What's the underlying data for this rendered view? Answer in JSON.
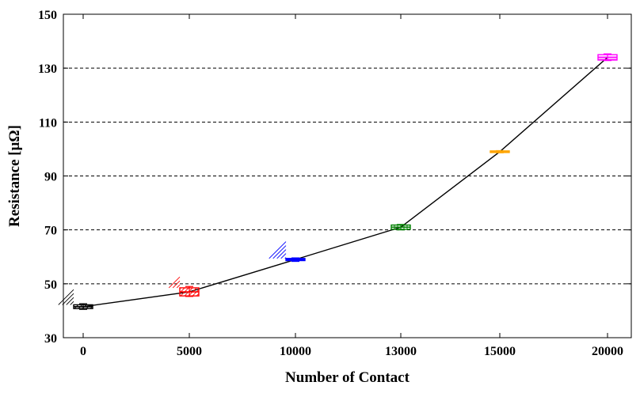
{
  "chart_data": {
    "type": "box",
    "xlabel": "Number of Contact",
    "ylabel": "Resistance [μΩ]",
    "categories": [
      "0",
      "5000",
      "10000",
      "13000",
      "15000",
      "20000"
    ],
    "ylim": [
      30,
      150
    ],
    "yticks": [
      30,
      50,
      70,
      90,
      110,
      130,
      150
    ],
    "grid": "horizontal-dashed",
    "series": [
      {
        "values": [
          41.5,
          47.0,
          59.0,
          71.0,
          99.0,
          134.0
        ],
        "boxes": [
          {
            "category": "0",
            "low": 40.5,
            "q1": 40.8,
            "median": 41.5,
            "q3": 42.2,
            "high": 42.6,
            "color": "#000000",
            "pattern": "diagonal-hatch"
          },
          {
            "category": "5000",
            "low": 45.3,
            "q1": 45.5,
            "median": 47.0,
            "q3": 48.5,
            "high": 49.0,
            "color": "#ff0000",
            "pattern": "diagonal-hatch"
          },
          {
            "category": "10000",
            "low": 58.3,
            "q1": 58.6,
            "median": 59.0,
            "q3": 59.4,
            "high": 59.6,
            "color": "#0000ff",
            "pattern": "crosshatch"
          },
          {
            "category": "13000",
            "low": 70.0,
            "q1": 70.2,
            "median": 71.0,
            "q3": 71.8,
            "high": 72.0,
            "color": "#008000",
            "pattern": "grid"
          },
          {
            "category": "15000",
            "low": 98.6,
            "q1": 98.7,
            "median": 99.0,
            "q3": 99.3,
            "high": 99.4,
            "color": "#ffa500",
            "pattern": "solid"
          },
          {
            "category": "20000",
            "low": 132.8,
            "q1": 133.0,
            "median": 134.0,
            "q3": 135.0,
            "high": 135.3,
            "color": "#ff00ff",
            "pattern": "horizontal-lines"
          }
        ]
      }
    ],
    "line_color": "#000000"
  }
}
